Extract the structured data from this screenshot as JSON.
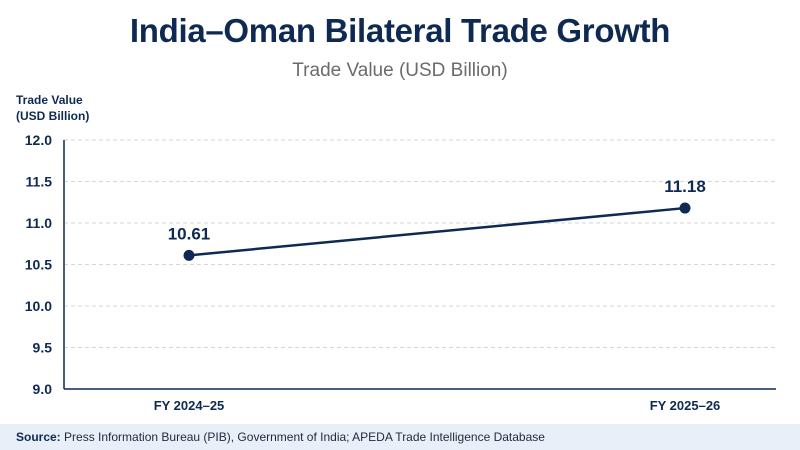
{
  "chart_data": {
    "type": "line",
    "title": "India–Oman Bilateral Trade Growth",
    "subtitle": "Trade Value (USD Billion)",
    "ylabel_lines": [
      "Trade Value",
      "(USD Billion)"
    ],
    "xlabel": "",
    "categories": [
      "FY 2024–25",
      "FY 2025–26"
    ],
    "series": [
      {
        "values": [
          10.61,
          11.18
        ],
        "data_labels": [
          "10.61",
          "11.18"
        ]
      }
    ],
    "ylim": [
      9.0,
      12.0
    ],
    "yticks": [
      "9.0",
      "9.5",
      "10.0",
      "10.5",
      "11.0",
      "11.5",
      "12.0"
    ],
    "grid": "horizontal-dashed",
    "line_color": "#0f2a52"
  },
  "footer": {
    "label": "Source:",
    "text": "Press Information Bureau (PIB), Government of India; APEDA Trade Intelligence Database"
  }
}
